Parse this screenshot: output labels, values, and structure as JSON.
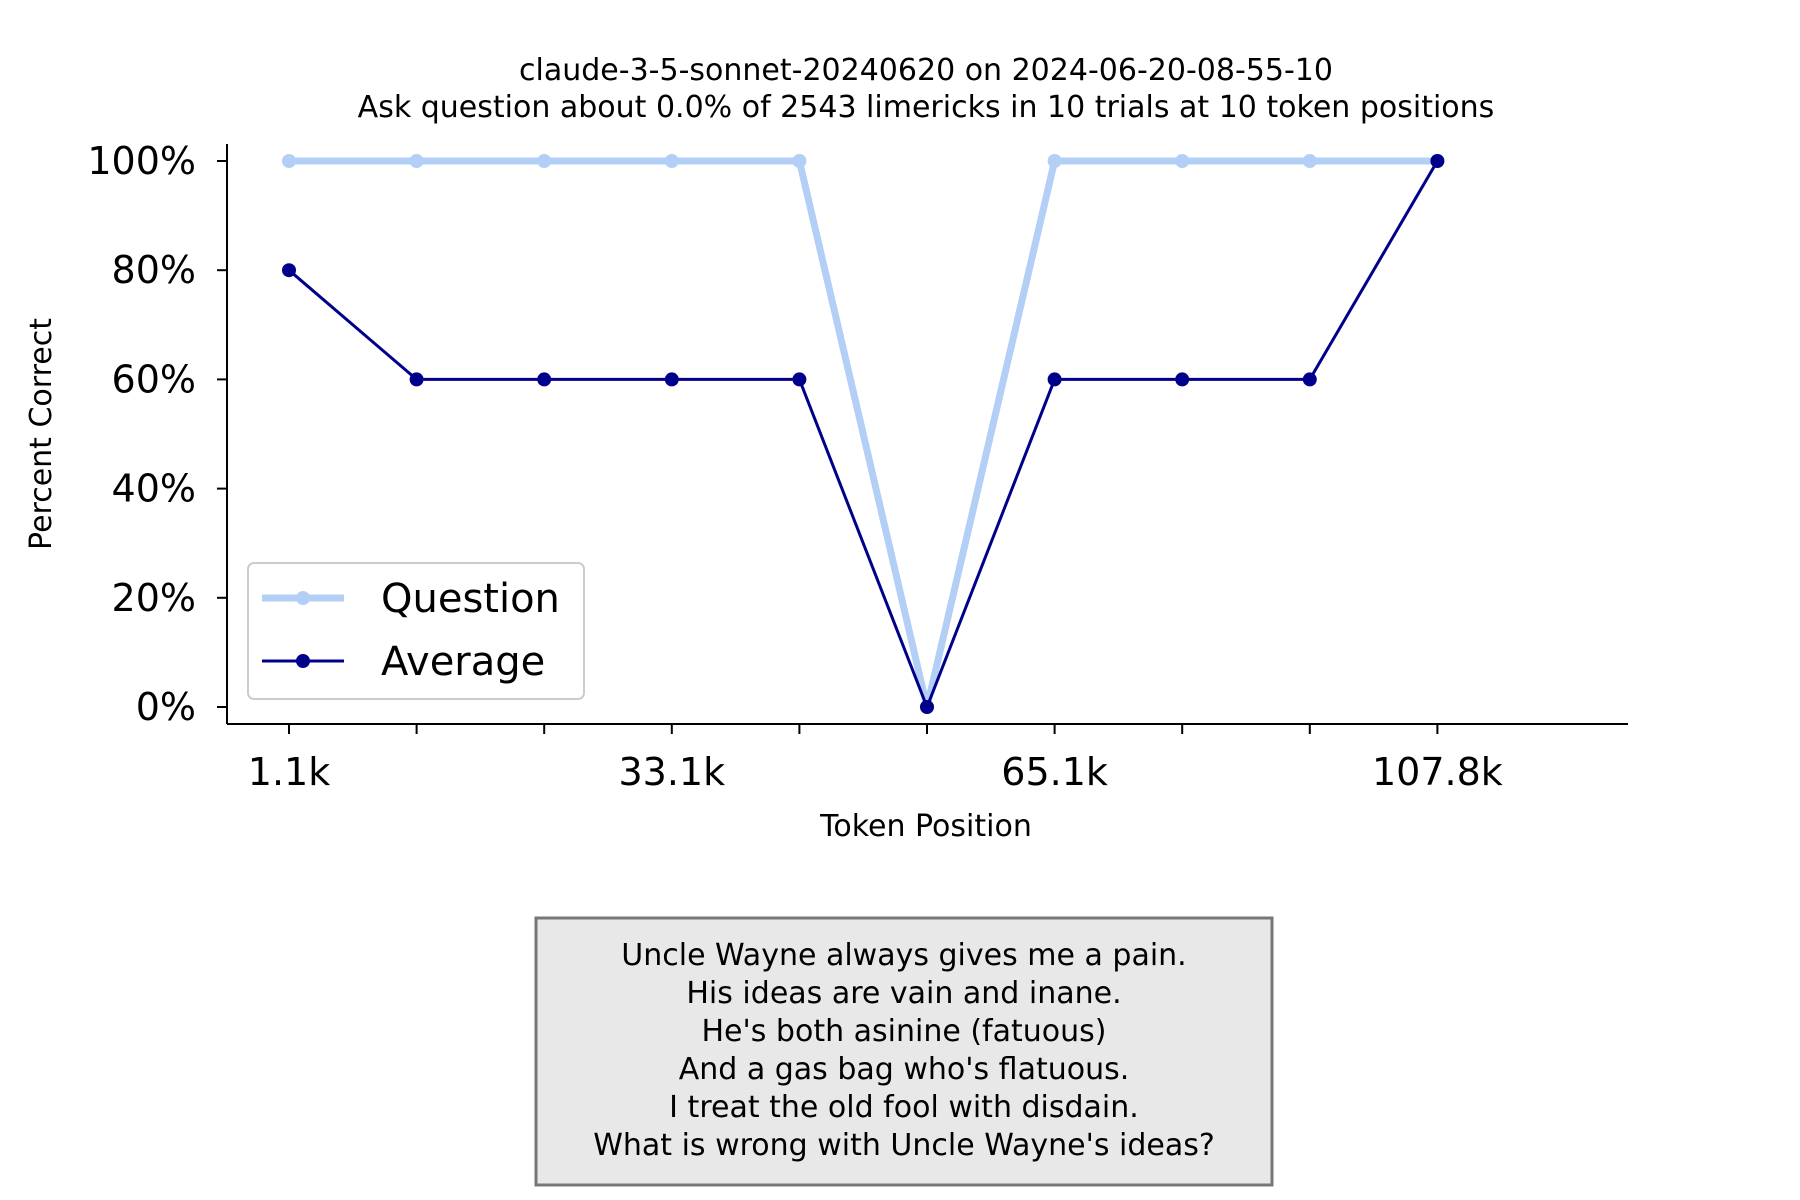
{
  "chart_data": {
    "type": "line",
    "title": "claude-3-5-sonnet-20240620 on 2024-06-20-08-55-10",
    "subtitle": "Ask question about 0.0% of 2543 limericks in 10 trials at 10 token positions",
    "xlabel": "Token Position",
    "ylabel": "Percent Correct",
    "x_tick_labels": [
      "1.1k",
      "",
      "",
      "33.1k",
      "",
      "",
      "65.1k",
      "",
      "",
      "107.8k"
    ],
    "x_tick_labeled_indices": [
      0,
      3,
      6,
      9
    ],
    "y_ticks": [
      0,
      20,
      40,
      60,
      80,
      100
    ],
    "y_tick_labels": [
      "0%",
      "20%",
      "40%",
      "60%",
      "80%",
      "100%"
    ],
    "ylim": [
      0,
      100
    ],
    "grid": false,
    "legend_position": "lower-left",
    "series": [
      {
        "name": "Question",
        "color": "#b3cff5",
        "values": [
          100,
          100,
          100,
          100,
          100,
          0,
          100,
          100,
          100,
          100
        ]
      },
      {
        "name": "Average",
        "color": "#00008b",
        "values": [
          80,
          60,
          60,
          60,
          60,
          0,
          60,
          60,
          60,
          100
        ]
      }
    ]
  },
  "note": {
    "lines": [
      "Uncle Wayne always gives me a pain.",
      "His ideas are vain and inane.",
      "He's both asinine (fatuous)",
      "And a gas bag who's flatuous.",
      "I treat the old fool with disdain.",
      "What is wrong with Uncle Wayne's ideas?"
    ]
  }
}
